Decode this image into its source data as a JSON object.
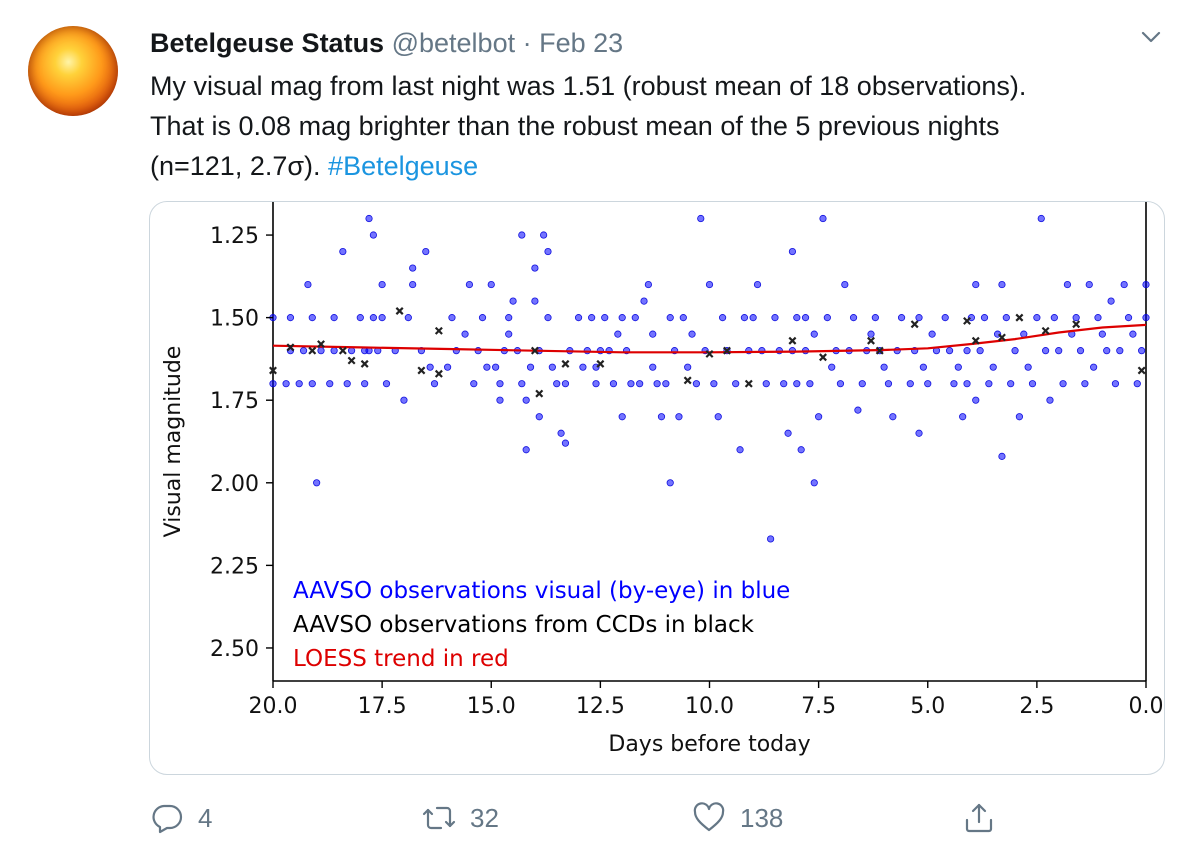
{
  "tweet": {
    "author_name": "Betelgeuse Status",
    "handle": "@betelbot",
    "separator": "·",
    "date": "Feb 23",
    "text_line1": "My visual mag from last night was 1.51 (robust mean of 18 observations).",
    "text_line2": "That is 0.08 mag brighter than the robust mean of the 5 previous nights",
    "text_line3": "(n=121, 2.7σ).",
    "hashtag": "#Betelgeuse",
    "avatar_icon": "sun-avatar",
    "menu_icon": "chevron-down-icon"
  },
  "actions": {
    "reply_count": "4",
    "retweet_count": "32",
    "like_count": "138",
    "reply_icon": "reply-icon",
    "retweet_icon": "retweet-icon",
    "like_icon": "heart-icon",
    "share_icon": "share-icon"
  },
  "colors": {
    "text": "#14171a",
    "muted": "#657786",
    "link": "#1b95e0",
    "visual_points": "#0000ff",
    "ccd_points": "#000000",
    "trend": "#dd0000"
  },
  "chart_data": {
    "type": "scatter",
    "xlabel": "Days before today",
    "ylabel": "Visual magnitude",
    "xlim": [
      20.0,
      0.0
    ],
    "ylim": [
      2.6,
      1.15
    ],
    "x_inverted": true,
    "y_inverted": true,
    "xticks": [
      "20.0",
      "17.5",
      "15.0",
      "12.5",
      "10.0",
      "7.5",
      "5.0",
      "2.5",
      "0.0"
    ],
    "yticks": [
      "1.25",
      "1.50",
      "1.75",
      "2.00",
      "2.25",
      "2.50"
    ],
    "legend": [
      {
        "text": "AAVSO observations visual (by-eye) in blue",
        "color": "#0000ff"
      },
      {
        "text": "AAVSO observations from CCDs in black",
        "color": "#000000"
      },
      {
        "text": "LOESS trend in red",
        "color": "#dd0000"
      }
    ],
    "legend_position": "bottom-left",
    "series": [
      {
        "name": "AAVSO observations visual (by-eye)",
        "marker": "circle",
        "points": [
          [
            20.0,
            1.5
          ],
          [
            20.0,
            1.7
          ],
          [
            19.7,
            1.7
          ],
          [
            19.6,
            1.6
          ],
          [
            19.6,
            1.5
          ],
          [
            19.4,
            1.7
          ],
          [
            19.3,
            1.6
          ],
          [
            19.2,
            1.4
          ],
          [
            19.1,
            1.7
          ],
          [
            19.1,
            1.5
          ],
          [
            19.0,
            2.0
          ],
          [
            18.9,
            1.6
          ],
          [
            18.7,
            1.7
          ],
          [
            18.6,
            1.5
          ],
          [
            18.6,
            1.6
          ],
          [
            18.4,
            1.3
          ],
          [
            18.3,
            1.7
          ],
          [
            18.2,
            1.6
          ],
          [
            18.0,
            1.5
          ],
          [
            17.9,
            1.7
          ],
          [
            17.9,
            1.6
          ],
          [
            17.8,
            1.6
          ],
          [
            17.8,
            1.2
          ],
          [
            17.7,
            1.25
          ],
          [
            17.7,
            1.5
          ],
          [
            17.6,
            1.6
          ],
          [
            17.5,
            1.4
          ],
          [
            17.5,
            1.5
          ],
          [
            17.4,
            1.7
          ],
          [
            17.2,
            1.6
          ],
          [
            17.0,
            1.75
          ],
          [
            16.9,
            1.5
          ],
          [
            16.8,
            1.35
          ],
          [
            16.8,
            1.4
          ],
          [
            16.6,
            1.6
          ],
          [
            16.5,
            1.3
          ],
          [
            16.4,
            1.65
          ],
          [
            16.3,
            1.7
          ],
          [
            16.0,
            1.65
          ],
          [
            15.9,
            1.5
          ],
          [
            15.8,
            1.6
          ],
          [
            15.6,
            1.55
          ],
          [
            15.5,
            1.4
          ],
          [
            15.4,
            1.7
          ],
          [
            15.3,
            1.6
          ],
          [
            15.2,
            1.5
          ],
          [
            15.1,
            1.65
          ],
          [
            15.0,
            1.4
          ],
          [
            14.9,
            1.65
          ],
          [
            14.8,
            1.7
          ],
          [
            14.8,
            1.75
          ],
          [
            14.7,
            1.6
          ],
          [
            14.6,
            1.5
          ],
          [
            14.6,
            1.55
          ],
          [
            14.5,
            1.45
          ],
          [
            14.4,
            1.6
          ],
          [
            14.3,
            1.25
          ],
          [
            14.3,
            1.7
          ],
          [
            14.2,
            1.75
          ],
          [
            14.2,
            1.9
          ],
          [
            14.1,
            1.65
          ],
          [
            14.0,
            1.35
          ],
          [
            14.0,
            1.45
          ],
          [
            13.9,
            1.6
          ],
          [
            13.9,
            1.8
          ],
          [
            13.8,
            1.25
          ],
          [
            13.7,
            1.3
          ],
          [
            13.7,
            1.5
          ],
          [
            13.6,
            1.65
          ],
          [
            13.5,
            1.7
          ],
          [
            13.4,
            1.85
          ],
          [
            13.3,
            1.88
          ],
          [
            13.3,
            1.7
          ],
          [
            13.2,
            1.6
          ],
          [
            13.0,
            1.5
          ],
          [
            12.9,
            1.65
          ],
          [
            12.8,
            1.6
          ],
          [
            12.7,
            1.5
          ],
          [
            12.6,
            1.7
          ],
          [
            12.6,
            1.65
          ],
          [
            12.5,
            1.6
          ],
          [
            12.4,
            1.5
          ],
          [
            12.3,
            1.6
          ],
          [
            12.2,
            1.7
          ],
          [
            12.1,
            1.55
          ],
          [
            12.0,
            1.5
          ],
          [
            12.0,
            1.8
          ],
          [
            11.9,
            1.6
          ],
          [
            11.8,
            1.7
          ],
          [
            11.7,
            1.5
          ],
          [
            11.6,
            1.7
          ],
          [
            11.5,
            1.45
          ],
          [
            11.4,
            1.4
          ],
          [
            11.3,
            1.65
          ],
          [
            11.3,
            1.55
          ],
          [
            11.2,
            1.7
          ],
          [
            11.1,
            1.8
          ],
          [
            11.0,
            1.7
          ],
          [
            10.9,
            2.0
          ],
          [
            10.9,
            1.5
          ],
          [
            10.8,
            1.6
          ],
          [
            10.7,
            1.8
          ],
          [
            10.6,
            1.5
          ],
          [
            10.5,
            1.65
          ],
          [
            10.4,
            1.55
          ],
          [
            10.3,
            1.7
          ],
          [
            10.2,
            1.2
          ],
          [
            10.1,
            1.6
          ],
          [
            10.0,
            1.4
          ],
          [
            9.9,
            1.7
          ],
          [
            9.8,
            1.8
          ],
          [
            9.7,
            1.5
          ],
          [
            9.6,
            1.6
          ],
          [
            9.4,
            1.7
          ],
          [
            9.3,
            1.9
          ],
          [
            9.2,
            1.5
          ],
          [
            9.1,
            1.6
          ],
          [
            9.0,
            1.5
          ],
          [
            8.9,
            1.4
          ],
          [
            8.8,
            1.6
          ],
          [
            8.7,
            1.7
          ],
          [
            8.6,
            2.17
          ],
          [
            8.5,
            1.5
          ],
          [
            8.4,
            1.6
          ],
          [
            8.3,
            1.7
          ],
          [
            8.2,
            1.85
          ],
          [
            8.1,
            1.6
          ],
          [
            8.1,
            1.3
          ],
          [
            8.0,
            1.5
          ],
          [
            8.0,
            1.7
          ],
          [
            7.9,
            1.9
          ],
          [
            7.8,
            1.6
          ],
          [
            7.8,
            1.5
          ],
          [
            7.7,
            1.7
          ],
          [
            7.6,
            2.0
          ],
          [
            7.6,
            1.55
          ],
          [
            7.5,
            1.8
          ],
          [
            7.4,
            1.2
          ],
          [
            7.3,
            1.5
          ],
          [
            7.2,
            1.65
          ],
          [
            7.1,
            1.6
          ],
          [
            7.0,
            1.7
          ],
          [
            6.9,
            1.4
          ],
          [
            6.8,
            1.6
          ],
          [
            6.7,
            1.5
          ],
          [
            6.6,
            1.78
          ],
          [
            6.5,
            1.7
          ],
          [
            6.4,
            1.6
          ],
          [
            6.3,
            1.55
          ],
          [
            6.2,
            1.5
          ],
          [
            6.1,
            1.6
          ],
          [
            6.0,
            1.65
          ],
          [
            5.9,
            1.7
          ],
          [
            5.8,
            1.8
          ],
          [
            5.7,
            1.6
          ],
          [
            5.6,
            1.5
          ],
          [
            5.4,
            1.7
          ],
          [
            5.3,
            1.6
          ],
          [
            5.2,
            1.85
          ],
          [
            5.2,
            1.5
          ],
          [
            5.1,
            1.65
          ],
          [
            5.0,
            1.7
          ],
          [
            4.9,
            1.55
          ],
          [
            4.8,
            1.6
          ],
          [
            4.6,
            1.5
          ],
          [
            4.5,
            1.6
          ],
          [
            4.4,
            1.7
          ],
          [
            4.3,
            1.65
          ],
          [
            4.2,
            1.8
          ],
          [
            4.1,
            1.7
          ],
          [
            4.1,
            1.6
          ],
          [
            4.0,
            1.5
          ],
          [
            3.9,
            1.4
          ],
          [
            3.9,
            1.75
          ],
          [
            3.8,
            1.6
          ],
          [
            3.7,
            1.5
          ],
          [
            3.6,
            1.7
          ],
          [
            3.5,
            1.65
          ],
          [
            3.4,
            1.55
          ],
          [
            3.3,
            1.92
          ],
          [
            3.3,
            1.4
          ],
          [
            3.2,
            1.5
          ],
          [
            3.1,
            1.7
          ],
          [
            3.0,
            1.6
          ],
          [
            2.9,
            1.8
          ],
          [
            2.8,
            1.55
          ],
          [
            2.7,
            1.65
          ],
          [
            2.6,
            1.7
          ],
          [
            2.5,
            1.5
          ],
          [
            2.4,
            1.2
          ],
          [
            2.3,
            1.6
          ],
          [
            2.2,
            1.75
          ],
          [
            2.1,
            1.5
          ],
          [
            2.0,
            1.6
          ],
          [
            1.9,
            1.7
          ],
          [
            1.8,
            1.4
          ],
          [
            1.7,
            1.55
          ],
          [
            1.6,
            1.5
          ],
          [
            1.5,
            1.6
          ],
          [
            1.4,
            1.7
          ],
          [
            1.3,
            1.4
          ],
          [
            1.2,
            1.65
          ],
          [
            1.1,
            1.5
          ],
          [
            1.0,
            1.55
          ],
          [
            0.9,
            1.6
          ],
          [
            0.8,
            1.45
          ],
          [
            0.7,
            1.7
          ],
          [
            0.6,
            1.6
          ],
          [
            0.5,
            1.4
          ],
          [
            0.4,
            1.5
          ],
          [
            0.3,
            1.55
          ],
          [
            0.2,
            1.7
          ],
          [
            0.1,
            1.6
          ],
          [
            0.0,
            1.5
          ],
          [
            0.0,
            1.4
          ]
        ]
      },
      {
        "name": "AAVSO observations from CCDs",
        "marker": "x",
        "points": [
          [
            20.0,
            1.66
          ],
          [
            19.6,
            1.59
          ],
          [
            19.1,
            1.6
          ],
          [
            18.9,
            1.58
          ],
          [
            18.4,
            1.6
          ],
          [
            18.2,
            1.63
          ],
          [
            17.9,
            1.64
          ],
          [
            17.1,
            1.48
          ],
          [
            16.6,
            1.66
          ],
          [
            16.2,
            1.54
          ],
          [
            16.2,
            1.67
          ],
          [
            14.0,
            1.6
          ],
          [
            13.9,
            1.73
          ],
          [
            13.3,
            1.64
          ],
          [
            12.5,
            1.64
          ],
          [
            10.5,
            1.69
          ],
          [
            10.0,
            1.61
          ],
          [
            9.6,
            1.6
          ],
          [
            9.1,
            1.7
          ],
          [
            8.1,
            1.57
          ],
          [
            7.4,
            1.62
          ],
          [
            6.3,
            1.57
          ],
          [
            6.1,
            1.6
          ],
          [
            5.3,
            1.52
          ],
          [
            4.1,
            1.51
          ],
          [
            3.9,
            1.57
          ],
          [
            3.3,
            1.56
          ],
          [
            2.9,
            1.5
          ],
          [
            2.3,
            1.54
          ],
          [
            1.6,
            1.52
          ],
          [
            0.1,
            1.66
          ]
        ]
      },
      {
        "name": "LOESS trend",
        "marker": "line",
        "points": [
          [
            20.0,
            1.585
          ],
          [
            18.0,
            1.59
          ],
          [
            16.0,
            1.595
          ],
          [
            14.0,
            1.6
          ],
          [
            12.0,
            1.605
          ],
          [
            10.0,
            1.605
          ],
          [
            8.0,
            1.603
          ],
          [
            6.0,
            1.598
          ],
          [
            5.0,
            1.593
          ],
          [
            4.0,
            1.58
          ],
          [
            3.0,
            1.565
          ],
          [
            2.0,
            1.545
          ],
          [
            1.0,
            1.53
          ],
          [
            0.0,
            1.522
          ]
        ]
      }
    ]
  }
}
